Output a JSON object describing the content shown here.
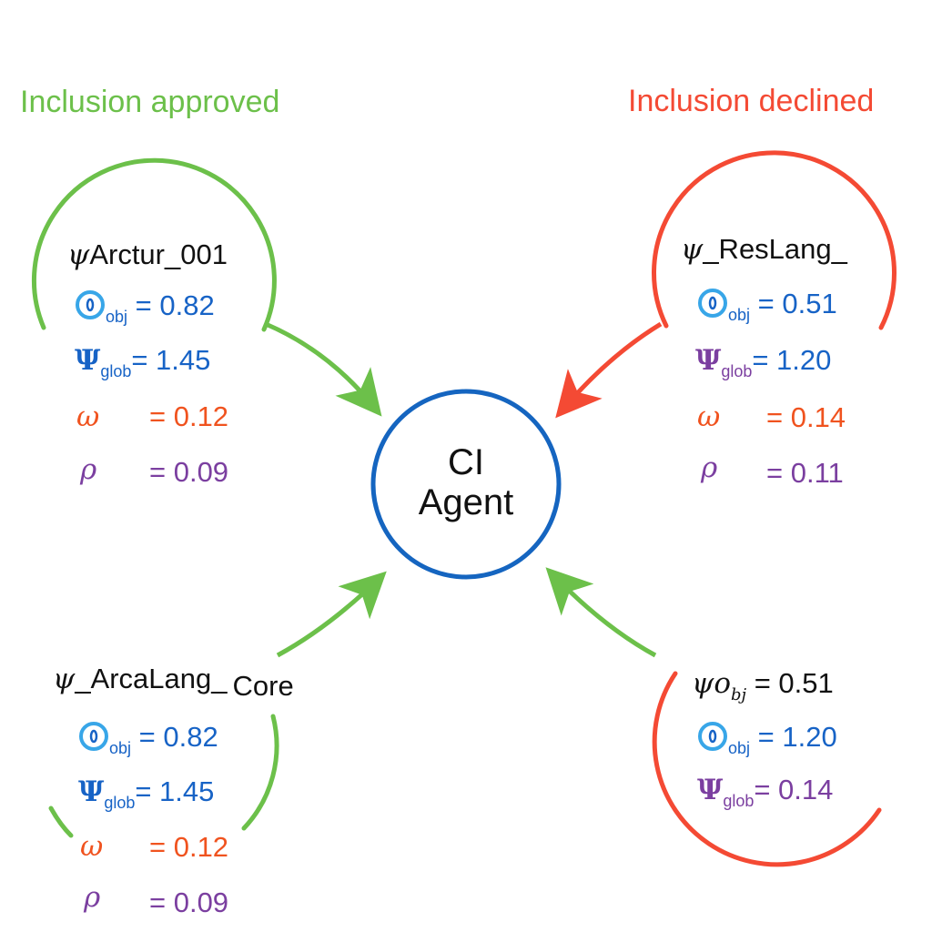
{
  "headings": {
    "approved": "Inclusion approved",
    "declined": "Inclusion declined"
  },
  "colors": {
    "approved": "#6cc04a",
    "declined": "#f44a34",
    "center": "#1565c0",
    "blue_value": "#1763c6",
    "orange_value": "#f0531f",
    "purple_value": "#7b3fa0",
    "light_blue_icon": "#38a6e8"
  },
  "center": {
    "line1": "CI",
    "line2": "Agent"
  },
  "nodes": {
    "top_left": {
      "symbol": "ψ",
      "name": "Arctur_001",
      "params": [
        {
          "icon": "o-icon",
          "sub": "obj",
          "value": "= 0.82"
        },
        {
          "icon": "Ψ",
          "sub": "glob",
          "value": "= 1.45"
        },
        {
          "icon": "ω",
          "sub": "",
          "value": "= 0.12"
        },
        {
          "icon": "ρ",
          "sub": "",
          "value": "= 0.09"
        }
      ]
    },
    "top_right": {
      "symbol": "ψ",
      "name": "_ResLang_",
      "params": [
        {
          "icon": "o-icon",
          "sub": "obj",
          "value": "= 0.51"
        },
        {
          "icon": "Ψ",
          "sub": "glob",
          "value": "= 1.20"
        },
        {
          "icon": "ω",
          "sub": "",
          "value": "= 0.14"
        },
        {
          "icon": "ρ",
          "sub": "",
          "value": "= 0.11"
        }
      ]
    },
    "bottom_left": {
      "symbol": "ψ",
      "name": "_ArcaLang_",
      "name_tail": "Core",
      "params": [
        {
          "icon": "o-icon",
          "sub": "obj",
          "value": "= 0.82"
        },
        {
          "icon": "Ψ",
          "sub": "glob",
          "value": "= 1.45"
        },
        {
          "icon": "ω",
          "sub": "",
          "value": "= 0.12"
        },
        {
          "icon": "ρ",
          "sub": "",
          "value": "= 0.09"
        }
      ]
    },
    "bottom_right": {
      "symbol": "ψ",
      "name_o": "o",
      "name_sub": "bj",
      "name_value": "= 0.51",
      "params": [
        {
          "icon": "o-icon",
          "sub": "obj",
          "value": "= 1.20"
        },
        {
          "icon": "Ψ",
          "sub": "glob",
          "value": "= 0.14"
        }
      ]
    }
  }
}
